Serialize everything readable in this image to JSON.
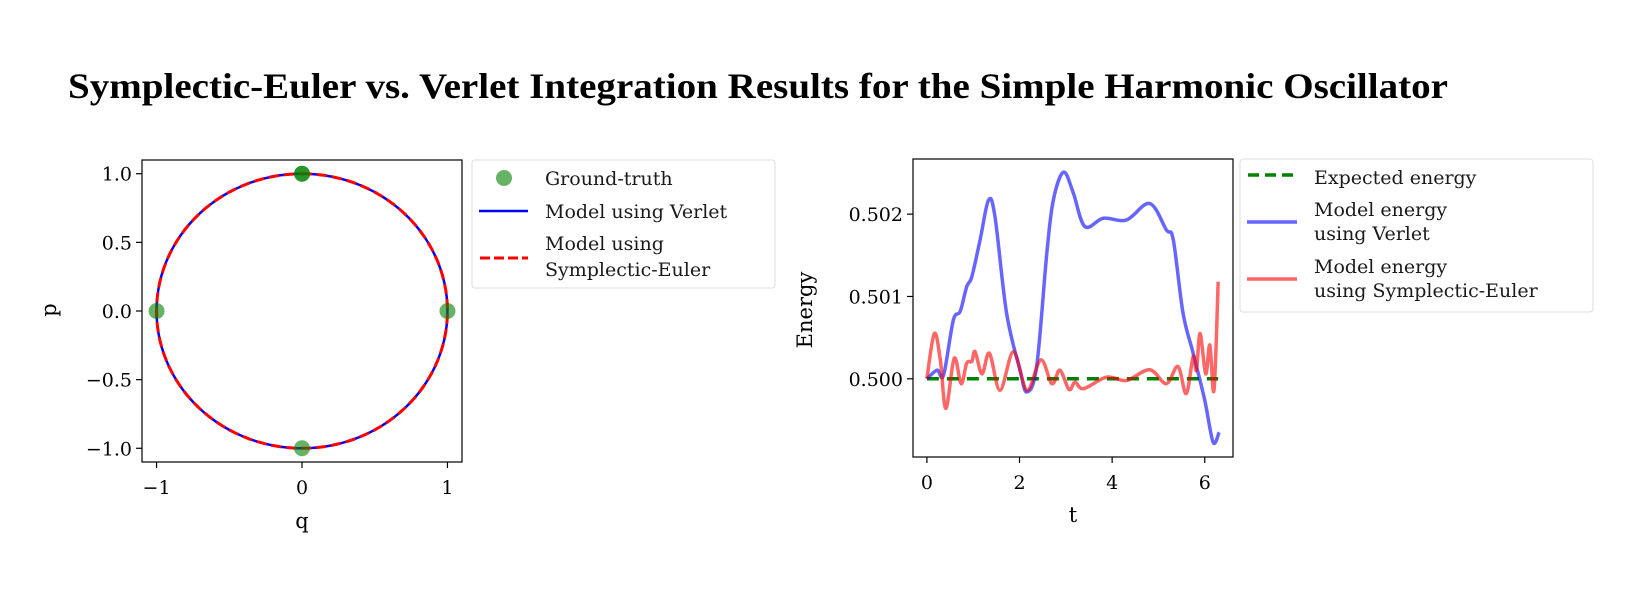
{
  "title": "Symplectic-Euler vs. Verlet Integration Results for the Simple Harmonic Oscillator",
  "colors": {
    "ground_truth": "#008000",
    "verlet": "#0000ff",
    "symplectic_euler": "#ff0000",
    "expected": "#008000"
  },
  "chart_data": [
    {
      "type": "line",
      "title": "",
      "xlabel": "q",
      "ylabel": "p",
      "xlim": [
        -1.1,
        1.1
      ],
      "ylim": [
        -1.1,
        1.1
      ],
      "xticks": [
        -1,
        0,
        1
      ],
      "xtick_labels": [
        "−1",
        "0",
        "1"
      ],
      "yticks": [
        1.0,
        0.5,
        0.0,
        -0.5,
        -1.0
      ],
      "ytick_labels": [
        "1.0",
        "0.5",
        "0.0",
        "−0.5",
        "−1.0"
      ],
      "grid": false,
      "legend_placement": "outside-right-top",
      "ground_truth": {
        "name": "Ground-truth",
        "points": [
          [
            0,
            1
          ],
          [
            1,
            0
          ],
          [
            0,
            -1
          ],
          [
            -1,
            0
          ],
          [
            0,
            1
          ]
        ]
      },
      "series": [
        {
          "name": "Model using Verlet",
          "style": "solid",
          "shape": "circle",
          "radius": 1.0
        },
        {
          "name_lines": [
            "Model using",
            "Symplectic-Euler"
          ],
          "style": "dashed",
          "shape": "circle",
          "radius": 1.0
        }
      ]
    },
    {
      "type": "line",
      "title": "",
      "xlabel": "t",
      "ylabel": "Energy",
      "xlim": [
        -0.3,
        6.61
      ],
      "ylim": [
        0.49905,
        0.50267
      ],
      "xticks": [
        0,
        2,
        4,
        6
      ],
      "xtick_labels": [
        "0",
        "2",
        "4",
        "6"
      ],
      "yticks": [
        0.5,
        0.501,
        0.502
      ],
      "ytick_labels": [
        "0.500",
        "0.501",
        "0.502"
      ],
      "grid": false,
      "legend_placement": "outside-right-top",
      "series": [
        {
          "name_lines": [
            "Expected energy"
          ],
          "style": "dashed",
          "x": [
            0,
            6.29
          ],
          "y": [
            0.5,
            0.5
          ]
        },
        {
          "name_lines": [
            "Model energy",
            "using Verlet"
          ],
          "style": "solid",
          "x": [
            0,
            0.22,
            0.36,
            0.57,
            0.72,
            0.86,
            0.97,
            1.15,
            1.33,
            1.47,
            1.72,
            2.01,
            2.16,
            2.37,
            2.59,
            2.73,
            2.95,
            3.16,
            3.41,
            3.81,
            4.31,
            4.81,
            5.17,
            5.32,
            5.53,
            5.75,
            6.0,
            6.18,
            6.31
          ],
          "y": [
            0.5,
            0.500105,
            0.500045,
            0.50071,
            0.50082,
            0.50112,
            0.50124,
            0.50169,
            0.50217,
            0.50197,
            0.5008,
            0.500105,
            0.49984,
            0.50015,
            0.50153,
            0.50217,
            0.50251,
            0.50226,
            0.50185,
            0.50195,
            0.50193,
            0.50213,
            0.50181,
            0.50169,
            0.5008,
            0.50031,
            0.49974,
            0.49923,
            0.49935
          ]
        },
        {
          "name_lines": [
            "Model energy",
            "using Symplectic-Euler"
          ],
          "style": "solid",
          "x": [
            0,
            0.16,
            0.29,
            0.41,
            0.59,
            0.74,
            0.86,
            0.97,
            1.04,
            1.19,
            1.35,
            1.58,
            1.87,
            2.16,
            2.46,
            2.7,
            2.87,
            3.07,
            3.2,
            3.38,
            3.88,
            4.31,
            4.81,
            5.17,
            5.42,
            5.6,
            5.75,
            5.82,
            5.9,
            6.02,
            6.11,
            6.2,
            6.29
          ],
          "y": [
            0.5,
            0.50055,
            0.50023,
            0.49964,
            0.50025,
            0.49994,
            0.50019,
            0.50021,
            0.50033,
            0.50006,
            0.50031,
            0.49986,
            0.50033,
            0.49986,
            0.50023,
            0.49994,
            0.500105,
            0.49987,
            0.49996,
            0.49988,
            0.50002,
            0.49998,
            0.50011,
            0.49994,
            0.50015,
            0.49982,
            0.50027,
            0.500105,
            0.50055,
            0.50006,
            0.50041,
            0.49986,
            0.50118
          ]
        }
      ]
    }
  ]
}
